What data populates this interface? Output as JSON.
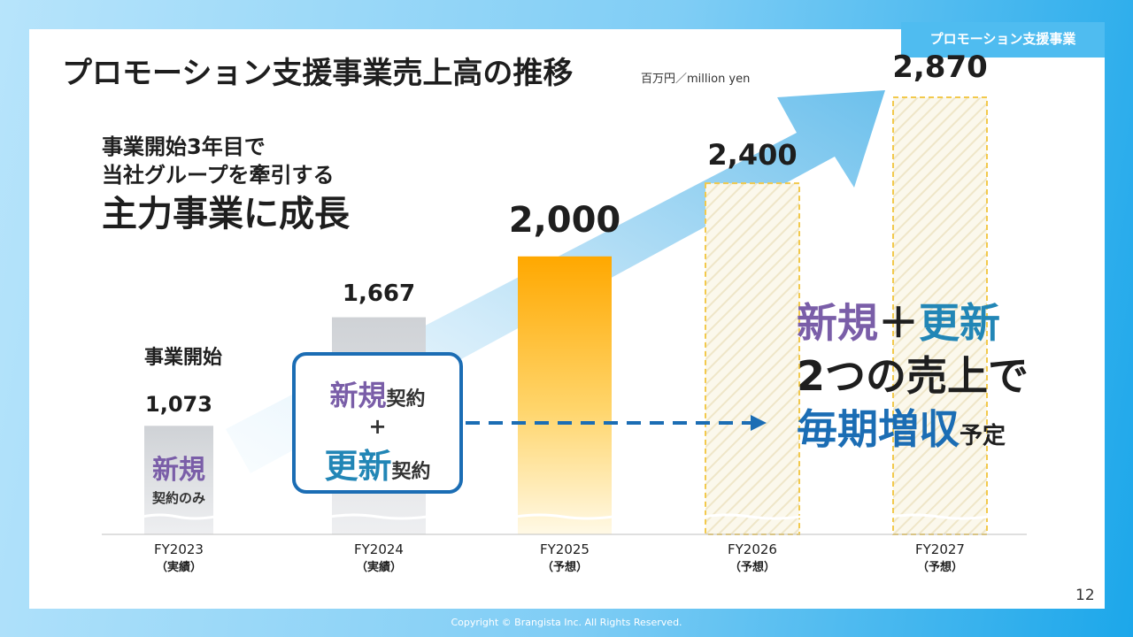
{
  "slide": {
    "section_tag": "プロモーション支援事業",
    "title": "プロモーション支援事業売上高の推移",
    "unit": "百万円／million yen",
    "headline": {
      "line1": "事業開始3年目で",
      "line2": "当社グループを牽引する",
      "line3": "主力事業に成長"
    },
    "start_label": "事業開始",
    "new_only": {
      "line1": "新規",
      "line2": "契約のみ"
    },
    "box": {
      "new": "新規",
      "contract1": "契約",
      "plus": "+",
      "renew": "更新",
      "contract2": "契約"
    },
    "callout": {
      "new": "新規",
      "plus": "＋",
      "renew": "更新",
      "line2": "2つの売上で",
      "line3": "毎期増収",
      "line3_small": "予定"
    },
    "page_number": "12",
    "copyright": "Copyright © Brangista Inc. All Rights Reserved."
  },
  "chart_data": {
    "type": "bar",
    "categories": [
      "FY2023",
      "FY2024",
      "FY2025",
      "FY2026",
      "FY2027"
    ],
    "category_notes": [
      "（実績）",
      "（実績）",
      "（予想）",
      "（予想）",
      "（予想）"
    ],
    "values": [
      1073,
      1667,
      2000,
      2400,
      2870
    ],
    "value_labels": [
      "1,073",
      "1,667",
      "2,000",
      "2,400",
      "2,870"
    ],
    "bar_styles": [
      "actual-gray",
      "actual-gray",
      "forecast-orange",
      "forecast-dashed",
      "forecast-dashed"
    ],
    "ylabel": "百万円／million yen",
    "colors": {
      "actual": "#d3d5d8",
      "forecast_orange_top": "#ffae00",
      "forecast_orange_bottom": "#fff7de",
      "forecast_dashed_border": "#f2c94c",
      "arrow": "#8ccdf0",
      "dashed_arrow": "#1b6db4"
    },
    "grid": false
  }
}
